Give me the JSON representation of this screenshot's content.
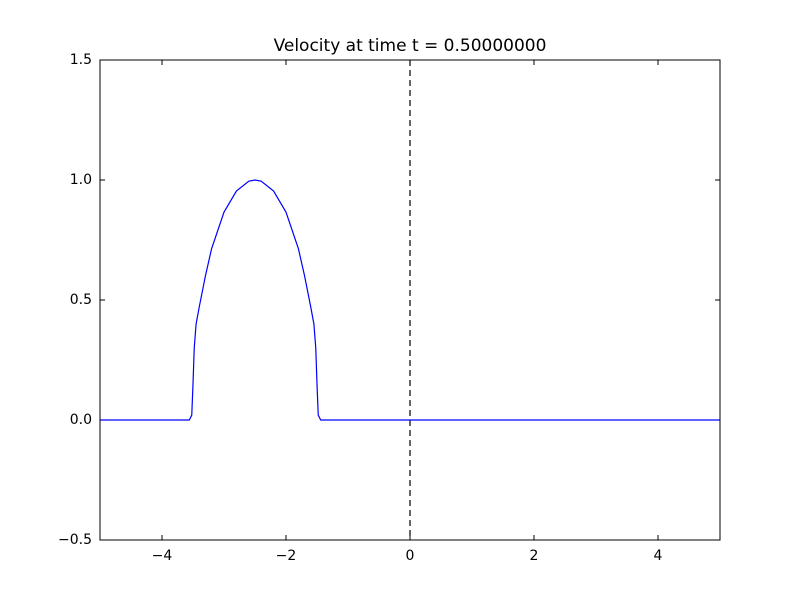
{
  "chart_data": {
    "type": "line",
    "title": "Velocity at time t =      0.50000000",
    "x": [
      -5,
      -3.56,
      -3.52,
      -3.5,
      -3.48,
      -3.45,
      -3.4,
      -3.3,
      -3.2,
      -3.0,
      -2.8,
      -2.6,
      -2.5,
      -2.4,
      -2.2,
      -2.0,
      -1.8,
      -1.7,
      -1.6,
      -1.55,
      -1.52,
      -1.5,
      -1.48,
      -1.44,
      5
    ],
    "series": [
      {
        "color": "#0000ff",
        "values": [
          0,
          0,
          0.02,
          0.15,
          0.3,
          0.4,
          0.47,
          0.6,
          0.714,
          0.866,
          0.954,
          0.995,
          1,
          0.995,
          0.954,
          0.866,
          0.714,
          0.6,
          0.47,
          0.4,
          0.3,
          0.15,
          0.02,
          0,
          0
        ]
      }
    ],
    "xlim": [
      -5,
      5
    ],
    "ylim": [
      -0.5,
      1.5
    ],
    "xticks": [
      {
        "value": -4,
        "label": "−4"
      },
      {
        "value": -2,
        "label": "−2"
      },
      0,
      2,
      4
    ],
    "yticks": [
      {
        "value": -0.5,
        "label": "−0.5"
      },
      {
        "value": 0,
        "label": "0.0"
      },
      {
        "value": 0.5,
        "label": "0.5"
      },
      {
        "value": 1,
        "label": "1.0"
      },
      {
        "value": 1.5,
        "label": "1.5"
      }
    ],
    "vlines": [
      0
    ],
    "vline_color": "#000000"
  }
}
